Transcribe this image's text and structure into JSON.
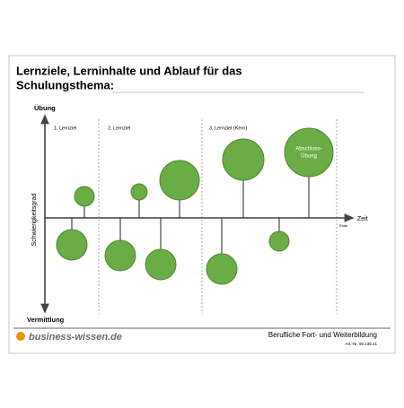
{
  "header": {
    "title_lines": [
      "Lernziele, Lerninhalte und Ablauf für das",
      "Schulungsthema:"
    ]
  },
  "axes": {
    "y_top": "Übung",
    "y_bottom": "Vermittlung",
    "y_label": "Schwierigkeitsgrad",
    "x_label": "Zeit",
    "x_end": "Ende"
  },
  "sections": [
    "1. Lernziel",
    "2. Lernziel",
    "3. Lernziel (Kern)"
  ],
  "bubble_label": [
    "Abschluss-",
    "Übung"
  ],
  "footer": {
    "brand": "business-wissen.de",
    "tagline": "Berufliche Fort- und Weiterbildung",
    "article": "Art.-Nr. 99.138.21"
  }
}
